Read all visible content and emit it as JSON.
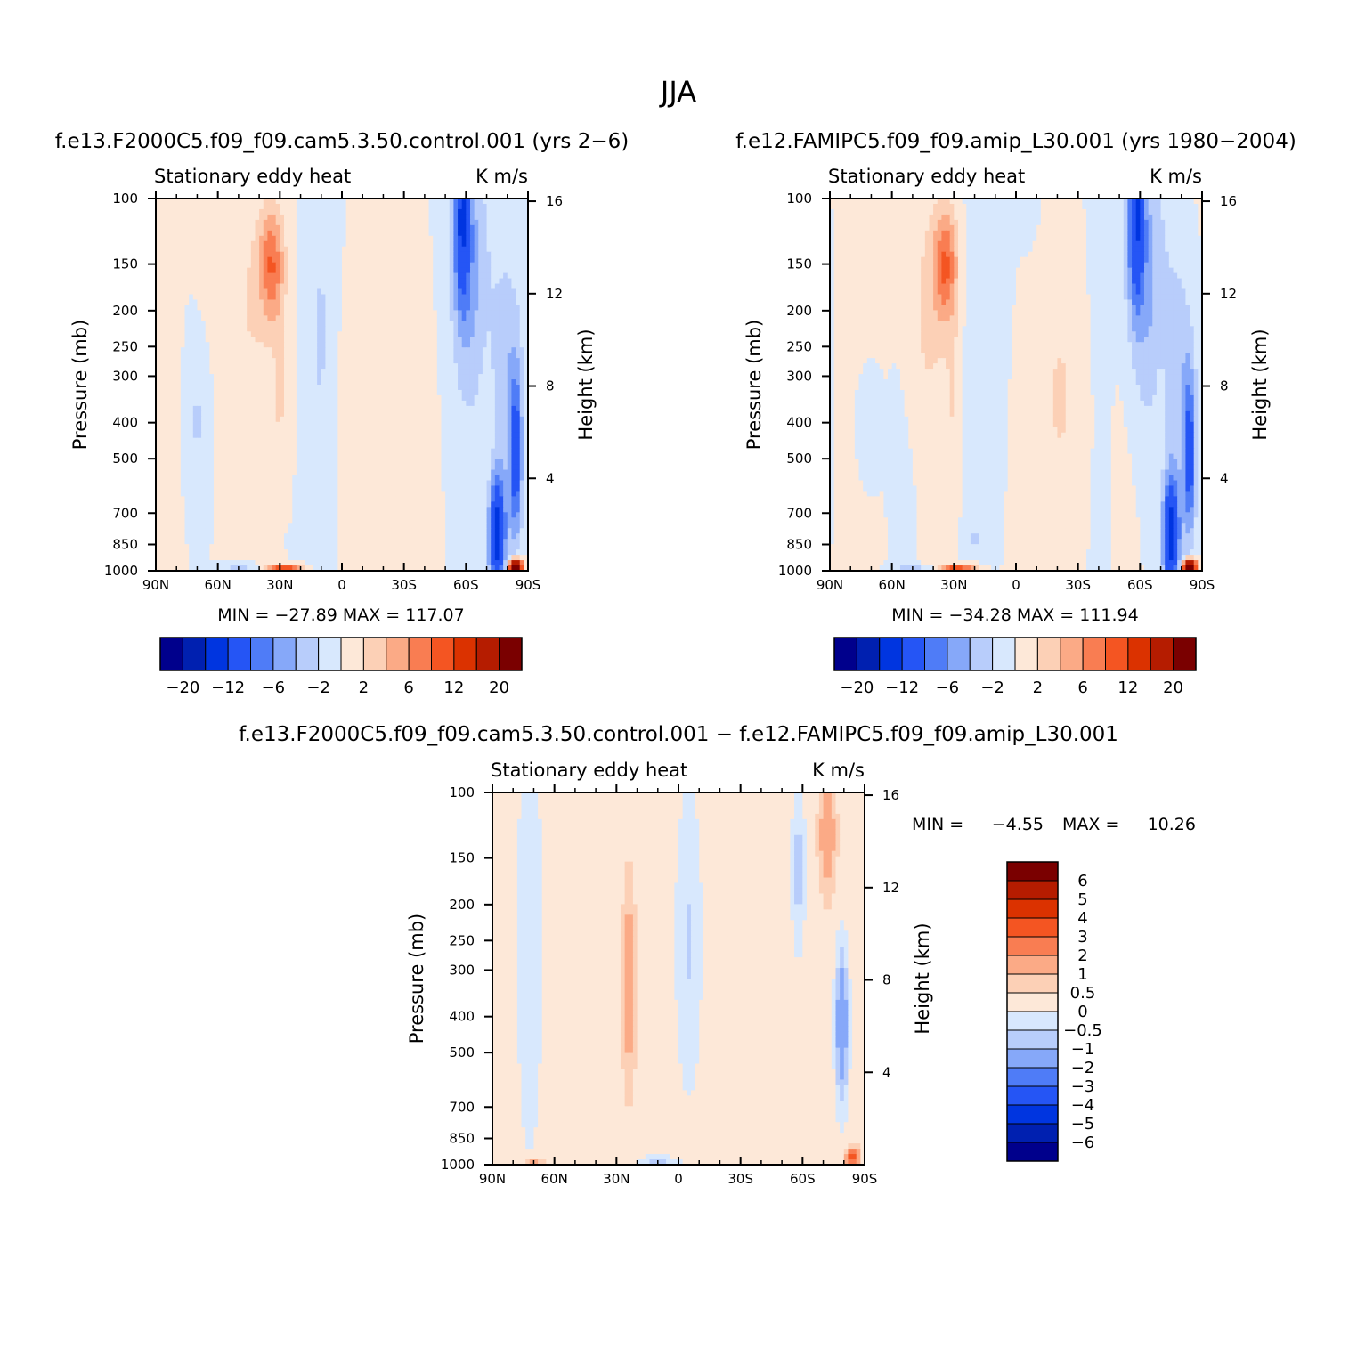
{
  "page_title": "JJA",
  "palette": {
    "colors": [
      "#00008c",
      "#0020b0",
      "#0035e0",
      "#2555f5",
      "#4f7cf7",
      "#86a8f9",
      "#b8cdfb",
      "#d8e8fd",
      "#fde8d8",
      "#fcd0b6",
      "#fbaa86",
      "#f97d52",
      "#f45522",
      "#db3200",
      "#b51c00",
      "#7a0000"
    ]
  },
  "panels": [
    {
      "case_title": "f.e13.F2000C5.f09_f09.cam5.3.50.control.001 (yrs 2−6)",
      "var_label": "Stationary eddy heat",
      "units": "K m/s",
      "ylabel": "Pressure (mb)",
      "y2label": "Height (km)",
      "min_max": "MIN = −27.89   MAX = 117.07",
      "colorbar_labels": [
        "−20",
        "−12",
        "−6",
        "−2",
        "2",
        "6",
        "12",
        "20"
      ]
    },
    {
      "case_title": "f.e12.FAMIPC5.f09_f09.amip_L30.001 (yrs 1980−2004)",
      "var_label": "Stationary eddy heat",
      "units": "K m/s",
      "ylabel": "Pressure (mb)",
      "y2label": "Height (km)",
      "min_max": "MIN = −34.28   MAX = 111.94",
      "colorbar_labels": [
        "−20",
        "−12",
        "−6",
        "−2",
        "2",
        "6",
        "12",
        "20"
      ]
    },
    {
      "case_title": "f.e13.F2000C5.f09_f09.cam5.3.50.control.001 − f.e12.FAMIPC5.f09_f09.amip_L30.001",
      "var_label": "Stationary eddy heat",
      "units": "K m/s",
      "ylabel": "Pressure (mb)",
      "y2label": "Height (km)",
      "min_label": "MIN =",
      "min_value": "−4.55",
      "max_label": "MAX =",
      "max_value": "10.26",
      "colorbar_labels": [
        "6",
        "5",
        "4",
        "3",
        "2",
        "1",
        "0.5",
        "0",
        "−0.5",
        "−1",
        "−2",
        "−3",
        "−4",
        "−5",
        "−6"
      ]
    }
  ],
  "chart_data": [
    {
      "type": "heatmap",
      "title": "Stationary eddy heat",
      "subtitle": "f.e13.F2000C5.f09_f09.cam5.3.50.control.001 (yrs 2−6)",
      "units": "K m/s",
      "x_ticks": [
        "90N",
        "60N",
        "30N",
        "0",
        "30S",
        "60S",
        "90S"
      ],
      "x_range": [
        90,
        -90
      ],
      "y_ticks": [
        100,
        150,
        200,
        250,
        300,
        400,
        500,
        700,
        850,
        1000
      ],
      "y_scale": "log",
      "y_range": [
        1000,
        100
      ],
      "y2_ticks": [
        4,
        8,
        12,
        16
      ],
      "contour_levels": [
        -20,
        -16,
        -12,
        -8,
        -6,
        -4,
        -2,
        0,
        2,
        4,
        6,
        8,
        12,
        16,
        20
      ],
      "min": -27.89,
      "max": 117.07
    },
    {
      "type": "heatmap",
      "title": "Stationary eddy heat",
      "subtitle": "f.e12.FAMIPC5.f09_f09.amip_L30.001 (yrs 1980−2004)",
      "units": "K m/s",
      "x_ticks": [
        "90N",
        "60N",
        "30N",
        "0",
        "30S",
        "60S",
        "90S"
      ],
      "x_range": [
        90,
        -90
      ],
      "y_ticks": [
        100,
        150,
        200,
        250,
        300,
        400,
        500,
        700,
        850,
        1000
      ],
      "y_scale": "log",
      "y_range": [
        1000,
        100
      ],
      "y2_ticks": [
        4,
        8,
        12,
        16
      ],
      "contour_levels": [
        -20,
        -16,
        -12,
        -8,
        -6,
        -4,
        -2,
        0,
        2,
        4,
        6,
        8,
        12,
        16,
        20
      ],
      "min": -34.28,
      "max": 111.94
    },
    {
      "type": "heatmap",
      "title": "Stationary eddy heat",
      "subtitle": "f.e13.F2000C5.f09_f09.cam5.3.50.control.001 − f.e12.FAMIPC5.f09_f09.amip_L30.001",
      "units": "K m/s",
      "x_ticks": [
        "90N",
        "60N",
        "30N",
        "0",
        "30S",
        "60S",
        "90S"
      ],
      "x_range": [
        90,
        -90
      ],
      "y_ticks": [
        100,
        150,
        200,
        250,
        300,
        400,
        500,
        700,
        850,
        1000
      ],
      "y_scale": "log",
      "y_range": [
        1000,
        100
      ],
      "y2_ticks": [
        4,
        8,
        12,
        16
      ],
      "contour_levels": [
        -6,
        -5,
        -4,
        -3,
        -2,
        -1,
        -0.5,
        0,
        0.5,
        1,
        2,
        3,
        4,
        5,
        6
      ],
      "min": -4.55,
      "max": 10.26
    }
  ]
}
